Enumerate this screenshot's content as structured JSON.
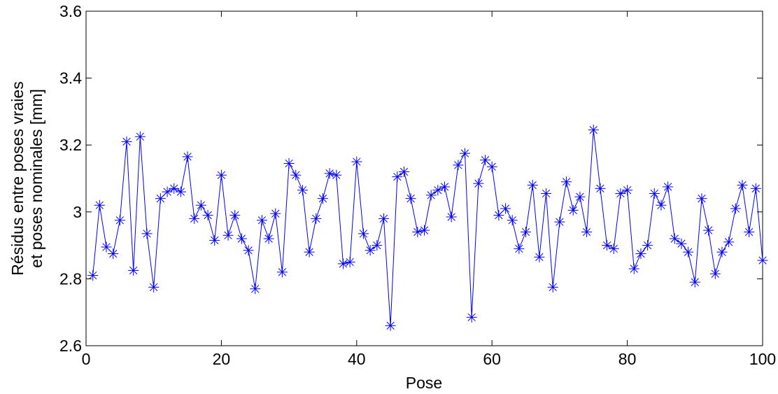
{
  "chart_data": {
    "type": "line",
    "title": "",
    "xlabel": "Pose",
    "ylabel_lines": [
      "Résidus entre poses vraies",
      "et poses nominales [mm]"
    ],
    "xlim": [
      0,
      100
    ],
    "ylim": [
      2.6,
      3.6
    ],
    "x_ticks": [
      0,
      20,
      40,
      60,
      80,
      100
    ],
    "x_tick_labels": [
      "0",
      "20",
      "40",
      "60",
      "80",
      "100"
    ],
    "y_ticks": [
      2.6,
      2.8,
      3.0,
      3.2,
      3.4,
      3.6
    ],
    "y_tick_labels": [
      "2.6",
      "2.8",
      "3",
      "3.2",
      "3.4",
      "3.6"
    ],
    "grid": false,
    "series": [
      {
        "color": "#0000ff",
        "marker": "asterisk",
        "x": [
          1,
          2,
          3,
          4,
          5,
          6,
          7,
          8,
          9,
          10,
          11,
          12,
          13,
          14,
          15,
          16,
          17,
          18,
          19,
          20,
          21,
          22,
          23,
          24,
          25,
          26,
          27,
          28,
          29,
          30,
          31,
          32,
          33,
          34,
          35,
          36,
          37,
          38,
          39,
          40,
          41,
          42,
          43,
          44,
          45,
          46,
          47,
          48,
          49,
          50,
          51,
          52,
          53,
          54,
          55,
          56,
          57,
          58,
          59,
          60,
          61,
          62,
          63,
          64,
          65,
          66,
          67,
          68,
          69,
          70,
          71,
          72,
          73,
          74,
          75,
          76,
          77,
          78,
          79,
          80,
          81,
          82,
          83,
          84,
          85,
          86,
          87,
          88,
          89,
          90,
          91,
          92,
          93,
          94,
          95,
          96,
          97,
          98,
          99,
          100
        ],
        "values": [
          2.81,
          3.02,
          2.895,
          2.875,
          2.975,
          3.21,
          2.825,
          3.225,
          2.935,
          2.775,
          3.04,
          3.06,
          3.07,
          3.06,
          3.165,
          2.98,
          3.02,
          2.99,
          2.915,
          3.11,
          2.93,
          2.99,
          2.92,
          2.885,
          2.77,
          2.975,
          2.92,
          2.995,
          2.82,
          3.145,
          3.11,
          3.065,
          2.88,
          2.98,
          3.04,
          3.115,
          3.11,
          2.845,
          2.85,
          3.15,
          2.935,
          2.885,
          2.9,
          2.98,
          2.66,
          3.105,
          3.12,
          3.04,
          2.94,
          2.945,
          3.05,
          3.065,
          3.075,
          2.985,
          3.14,
          3.175,
          2.685,
          3.085,
          3.155,
          3.135,
          2.99,
          3.01,
          2.975,
          2.89,
          2.94,
          3.08,
          2.865,
          3.055,
          2.775,
          2.97,
          3.09,
          3.005,
          3.045,
          2.94,
          3.245,
          3.07,
          2.9,
          2.89,
          3.055,
          3.065,
          2.83,
          2.875,
          2.9,
          3.055,
          3.02,
          3.075,
          2.92,
          2.905,
          2.88,
          2.79,
          3.04,
          2.945,
          2.815,
          2.88,
          2.91,
          3.01,
          3.08,
          2.94,
          3.07,
          2.855
        ]
      }
    ]
  }
}
